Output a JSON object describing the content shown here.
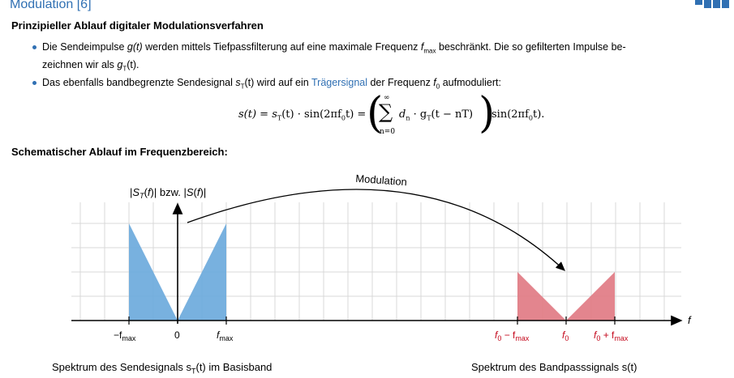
{
  "header": {
    "title": "Modulation [6]",
    "subtitle": "Prinzipieller Ablauf digitaler Modulationsverfahren"
  },
  "bullets": {
    "b1": {
      "t1": "Die Sendeimpulse ",
      "t2": "g(t)",
      "t3": " werden mittels Tiefpassfilterung auf eine maximale Frequenz ",
      "t4": "f",
      "t5": "max",
      "t6": " beschränkt. Die so gefilterten Impulse be-",
      "t7": "zeichnen wir als ",
      "t8": "g",
      "t9": "T",
      "t10": "(t)."
    },
    "b2": {
      "t1": "Das ebenfalls bandbegrenzte Sendesignal ",
      "t2": "s",
      "t3": "T",
      "t4": "(t)",
      "t5": " wird auf ein ",
      "link": "Trägersignal",
      "t6": " der Frequenz ",
      "t7": "f",
      "t8": "0",
      "t9": " aufmoduliert:"
    }
  },
  "formula": {
    "left": "s(t) = s",
    "sub1": "T",
    "mid": "(t) · sin(2πf",
    "sub2": "0",
    "mid2": "t) =",
    "sum_top": "∞",
    "sum": "∑",
    "sum_bot": "n=0",
    "inner1": "d",
    "inner_sub": "n",
    "inner2": " · g",
    "inner_sub2": "T",
    "inner3": "(t − nT)",
    "tail": "sin(2πf",
    "tail_sub": "0",
    "tail2": "t)."
  },
  "section": {
    "heading": "Schematischer Ablauf im Frequenzbereich:"
  },
  "diagram": {
    "ylabel": "|S_T(f)| bzw. |S(f)|",
    "modulation_label": "Modulation",
    "axis_label": "f",
    "ticks": {
      "neg_fmax": "−f",
      "neg_fmax_sub": "max",
      "zero": "0",
      "fmax": "f",
      "fmax_sub": "max",
      "f0_minus": "f",
      "f0_minus_sub0": "0",
      "f0_minus_mid": " − f",
      "f0_minus_sub": "max",
      "f0": "f",
      "f0_sub": "0",
      "f0_plus": "f",
      "f0_plus_sub0": "0",
      "f0_plus_mid": " + f",
      "f0_plus_sub": "max"
    },
    "colors": {
      "baseband": "#69a9dc",
      "bandpass": "#e07882",
      "red_label": "#c4071b"
    }
  },
  "captions": {
    "left": "Spektrum des Sendesignals s",
    "left_sub": "T",
    "left_tail": "(t) im Basisband",
    "right": "Spektrum des Bandpasssignals s(t)"
  }
}
